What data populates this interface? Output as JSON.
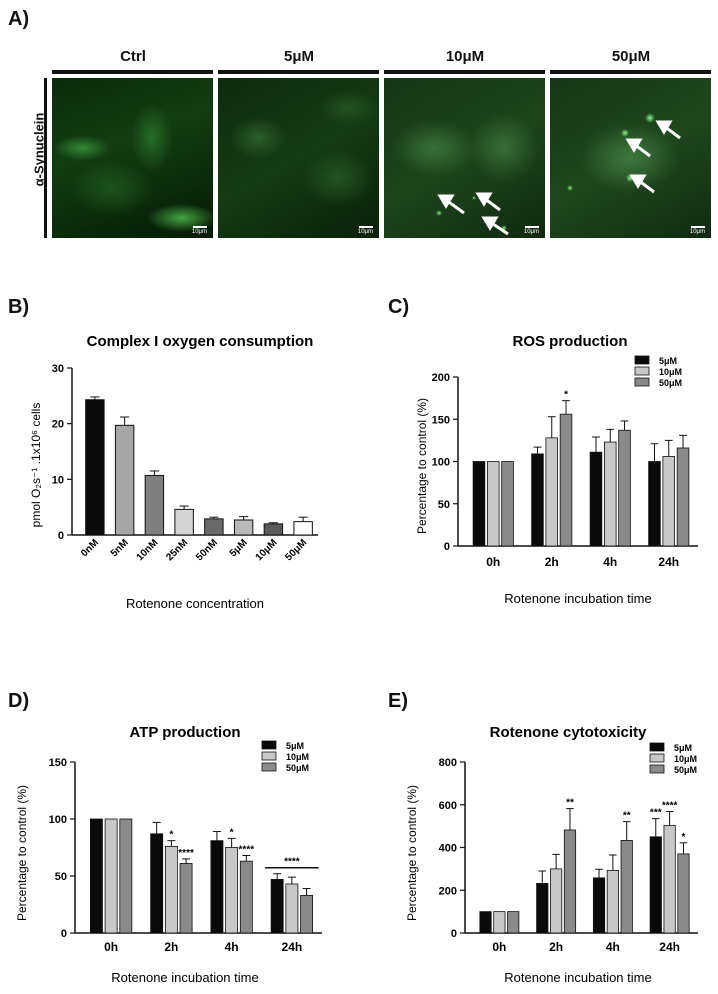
{
  "panels": {
    "a": {
      "letter": "A)",
      "row_label": "α-Synuclein",
      "columns": [
        {
          "label": "Ctrl",
          "scale": "10μm"
        },
        {
          "label": "5μM",
          "scale": "10μm"
        },
        {
          "label": "10μM",
          "scale": "10μm"
        },
        {
          "label": "50μM",
          "scale": "10μm"
        }
      ]
    },
    "b": {
      "letter": "B)"
    },
    "c": {
      "letter": "C)"
    },
    "d": {
      "letter": "D)"
    },
    "e": {
      "letter": "E)"
    }
  },
  "colors": {
    "black": "#0a0a0a",
    "light_gray": "#c8c8c8",
    "mid_gray": "#8a8a8a",
    "dark_gray": "#6e6e6e",
    "white": "#ffffff",
    "micro_green": "#2fb52f"
  },
  "chart_data": [
    {
      "id": "b",
      "type": "bar",
      "title": "Complex I oxygen consumption",
      "ylabel": "pmol O₂s⁻¹ .1x10⁶ cells",
      "xlabel": "Rotenone concentration",
      "ylim": [
        0,
        30
      ],
      "yticks": [
        0,
        10,
        20,
        30
      ],
      "categories": [
        "0nM",
        "5nM",
        "10nM",
        "25nM",
        "50nM",
        "5μM",
        "10μM",
        "50μM"
      ],
      "values": [
        24.3,
        19.7,
        10.7,
        4.6,
        2.9,
        2.7,
        2.0,
        2.4
      ],
      "errors": [
        0.5,
        1.5,
        0.8,
        0.6,
        0.3,
        0.6,
        0.2,
        0.8
      ],
      "bar_colors": [
        "#0a0a0a",
        "#a6a6a6",
        "#7f7f7f",
        "#d4d4d4",
        "#6a6a6a",
        "#b8b8b8",
        "#5a5a5a",
        "#ffffff"
      ]
    },
    {
      "id": "c",
      "type": "bar",
      "title": "ROS production",
      "ylabel": "Percentage to control (%)",
      "xlabel": "Rotenone incubation time",
      "ylim": [
        0,
        200
      ],
      "yticks": [
        0,
        50,
        100,
        150,
        200
      ],
      "categories": [
        "0h",
        "2h",
        "4h",
        "24h"
      ],
      "series": [
        {
          "name": "5μM",
          "values": [
            100,
            109,
            111,
            100
          ],
          "errors": [
            0,
            8,
            18,
            21
          ]
        },
        {
          "name": "10μM",
          "values": [
            100,
            128,
            123,
            106
          ],
          "errors": [
            0,
            25,
            15,
            19
          ]
        },
        {
          "name": "50μM",
          "values": [
            100,
            156,
            137,
            116
          ],
          "errors": [
            0,
            16,
            11,
            15
          ]
        }
      ],
      "annotations": [
        {
          "category": "2h",
          "series": 2,
          "text": "*"
        }
      ],
      "legend": "top-right"
    },
    {
      "id": "d",
      "type": "bar",
      "title": "ATP production",
      "ylabel": "Percentage to control (%)",
      "xlabel": "Rotenone incubation time",
      "ylim": [
        0,
        150
      ],
      "yticks": [
        0,
        50,
        100,
        150
      ],
      "categories": [
        "0h",
        "2h",
        "4h",
        "24h"
      ],
      "series": [
        {
          "name": "5μM",
          "values": [
            100,
            87,
            81,
            47
          ],
          "errors": [
            0,
            10,
            8,
            5
          ]
        },
        {
          "name": "10μM",
          "values": [
            100,
            76,
            75,
            43
          ],
          "errors": [
            0,
            5,
            8,
            6
          ]
        },
        {
          "name": "50μM",
          "values": [
            100,
            61,
            63,
            33
          ],
          "errors": [
            0,
            4,
            5,
            6
          ]
        }
      ],
      "annotations": [
        {
          "category": "2h",
          "series": 1,
          "text": "*"
        },
        {
          "category": "2h",
          "series": 2,
          "text": "****"
        },
        {
          "category": "4h",
          "series": 1,
          "text": "*"
        },
        {
          "category": "4h",
          "series": 2,
          "text": "****"
        },
        {
          "category": "24h",
          "series": -1,
          "text": "****"
        }
      ],
      "legend": "top-right"
    },
    {
      "id": "e",
      "type": "bar",
      "title": "Rotenone cytotoxicity",
      "ylabel": "Percentage to control (%)",
      "xlabel": "Rotenone incubation time",
      "ylim": [
        0,
        800
      ],
      "yticks": [
        0,
        200,
        400,
        600,
        800
      ],
      "categories": [
        "0h",
        "2h",
        "4h",
        "24h"
      ],
      "series": [
        {
          "name": "5μM",
          "values": [
            100,
            232,
            258,
            450
          ],
          "errors": [
            0,
            58,
            40,
            85
          ]
        },
        {
          "name": "10μM",
          "values": [
            100,
            300,
            293,
            503
          ],
          "errors": [
            0,
            68,
            72,
            65
          ]
        },
        {
          "name": "50μM",
          "values": [
            100,
            482,
            433,
            370
          ],
          "errors": [
            0,
            100,
            88,
            52
          ]
        }
      ],
      "annotations": [
        {
          "category": "2h",
          "series": 2,
          "text": "**"
        },
        {
          "category": "4h",
          "series": 2,
          "text": "**"
        },
        {
          "category": "24h",
          "series": 0,
          "text": "***"
        },
        {
          "category": "24h",
          "series": 1,
          "text": "****"
        },
        {
          "category": "24h",
          "series": 2,
          "text": "*"
        }
      ],
      "legend": "top-right"
    }
  ]
}
